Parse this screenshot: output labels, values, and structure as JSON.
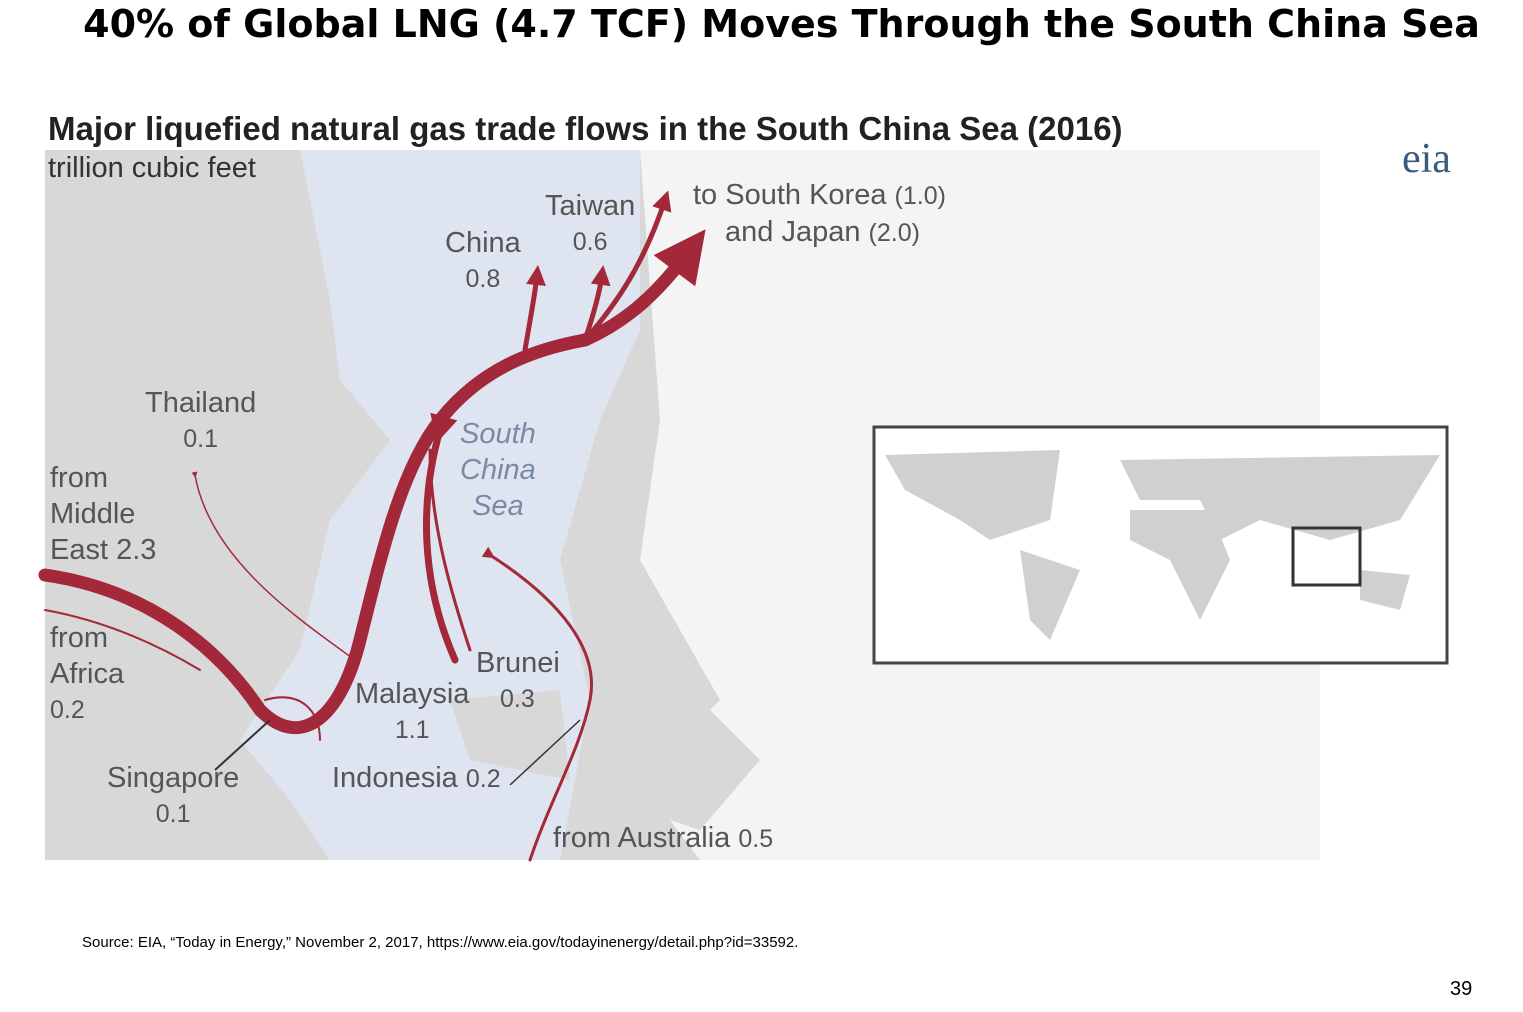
{
  "header": {
    "title": "40% of Global LNG (4.7 TCF) Moves Through the South China Sea"
  },
  "map": {
    "title": "Major liquefied natural gas trade flows in the South China Sea (2016)",
    "subtitle": "trillion cubic feet",
    "logo": "eia",
    "sea_label": [
      "South",
      "China",
      "Sea"
    ],
    "labels": [
      {
        "lines": [
          "Taiwan",
          "0.6"
        ]
      },
      {
        "lines": [
          "China",
          "0.8"
        ]
      },
      {
        "lines": [
          "to South Korea",
          "(1.0)",
          "and Japan",
          "(2.0)"
        ]
      },
      {
        "lines": [
          "Thailand",
          "0.1"
        ]
      },
      {
        "lines": [
          "from",
          "Middle",
          "East 2.3"
        ]
      },
      {
        "lines": [
          "from",
          "Africa",
          "0.2"
        ]
      },
      {
        "lines": [
          "Singapore",
          "0.1"
        ]
      },
      {
        "lines": [
          "Malaysia",
          "1.1"
        ]
      },
      {
        "lines": [
          "Brunei",
          "0.3"
        ]
      },
      {
        "lines": [
          "Indonesia",
          "0.2"
        ]
      },
      {
        "lines": [
          "from Australia",
          "0.5"
        ]
      }
    ]
  },
  "footer": {
    "source": "Source: EIA, “Today in Energy,” November 2, 2017, https://www.eia.gov/todayinenergy/detail.php?id=33592.",
    "page": "39"
  }
}
